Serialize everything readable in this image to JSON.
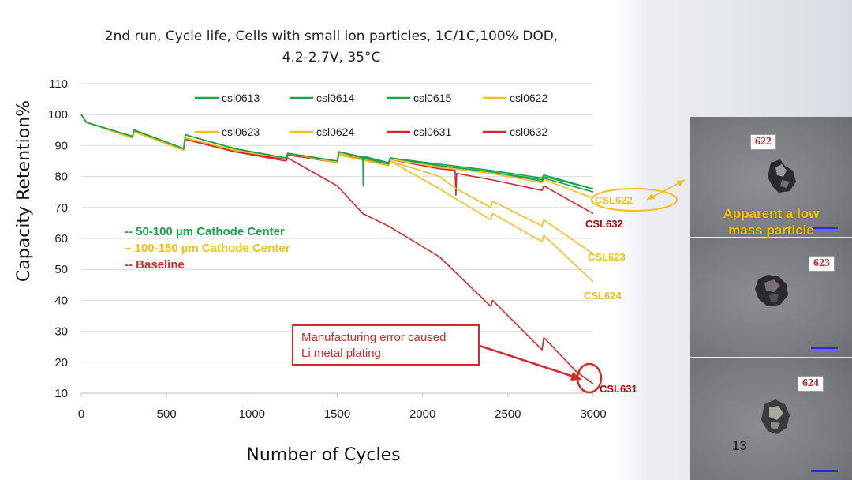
{
  "title_lines": [
    "2nd run, Cycle life, Cells with small ion particles, 1C/1C,100% DOD,",
    "4.2-2.7V, 35°C"
  ],
  "colors": {
    "green": "#1aa34a",
    "yellow": "#f5be1a",
    "red": "#d62828",
    "dark_red": "#c00000"
  },
  "chart_data": {
    "type": "line",
    "title": "2nd run, Cycle life, Cells with small ion particles, 1C/1C,100% DOD, 4.2-2.7V, 35°C",
    "xlabel": "Number of Cycles",
    "ylabel": "Capacity Retention%",
    "xlim": [
      0,
      3000
    ],
    "ylim": [
      10,
      110
    ],
    "x_ticks": [
      "0",
      "500",
      "1000",
      "1500",
      "2000",
      "2500",
      "3000"
    ],
    "y_ticks": [
      "10",
      "20",
      "30",
      "40",
      "50",
      "60",
      "70",
      "80",
      "90",
      "100",
      "110"
    ],
    "legend": [
      "csl0613",
      "csl0614",
      "csl0615",
      "csl0622",
      "csl0623",
      "csl0624",
      "csl0631",
      "csl0632"
    ],
    "series": [
      {
        "name": "csl0613",
        "color": "#1aa34a",
        "x": [
          0,
          30,
          300,
          310,
          600,
          610,
          900,
          1200,
          1210,
          1500,
          1510,
          1800,
          1810,
          2100,
          2400,
          2700,
          2710,
          3000
        ],
        "y": [
          100,
          97.5,
          93,
          95,
          89,
          93.5,
          89,
          86,
          87.5,
          85,
          88,
          84,
          86,
          83.5,
          81.5,
          78.5,
          79.5,
          75
        ]
      },
      {
        "name": "csl0614",
        "color": "#1aa34a",
        "x": [
          0,
          30,
          300,
          310,
          600,
          610,
          900,
          1200,
          1210,
          1500,
          1510,
          1650,
          1652,
          1656,
          1660,
          1800,
          1810,
          2100,
          2400,
          2700,
          2710,
          3000
        ],
        "y": [
          100,
          97.5,
          93,
          95,
          89,
          93.5,
          89,
          86,
          87.5,
          85,
          88,
          86,
          77,
          86,
          86.5,
          84.5,
          86,
          83.5,
          81.5,
          79,
          80,
          76
        ]
      },
      {
        "name": "csl0615",
        "color": "#1aa34a",
        "x": [
          0,
          30,
          300,
          310,
          600,
          610,
          900,
          1200,
          1210,
          1500,
          1510,
          1800,
          1810,
          2100,
          2400,
          2700,
          2710,
          3000
        ],
        "y": [
          100,
          97.5,
          93,
          95,
          89,
          93.5,
          89,
          86,
          87.5,
          85,
          88,
          84.5,
          86,
          84,
          82,
          79.5,
          80.5,
          76
        ]
      },
      {
        "name": "csl0622",
        "color": "#f5be1a",
        "x": [
          0,
          30,
          300,
          310,
          600,
          610,
          900,
          1200,
          1210,
          1500,
          1510,
          1800,
          1810,
          2100,
          2400,
          2700,
          2710,
          3000
        ],
        "y": [
          100,
          97.5,
          92.5,
          94.5,
          88.5,
          92.5,
          88.5,
          86,
          87.5,
          85,
          87.5,
          84,
          85.5,
          83,
          81,
          78,
          79,
          73
        ]
      },
      {
        "name": "csl0623",
        "color": "#f5be1a",
        "x": [
          0,
          30,
          300,
          310,
          600,
          610,
          900,
          1200,
          1210,
          1500,
          1510,
          1800,
          1810,
          2100,
          2200,
          2400,
          2410,
          2700,
          2710,
          3000
        ],
        "y": [
          100,
          97.5,
          92.5,
          94.5,
          88.5,
          92.5,
          88.5,
          86,
          87.5,
          84.5,
          87,
          83.5,
          85,
          80,
          76,
          70,
          72,
          64,
          66,
          55
        ]
      },
      {
        "name": "csl0624",
        "color": "#f5be1a",
        "x": [
          0,
          30,
          300,
          310,
          600,
          610,
          900,
          1200,
          1210,
          1500,
          1510,
          1800,
          1810,
          2100,
          2400,
          2410,
          2700,
          2710,
          3000
        ],
        "y": [
          100,
          97.5,
          92.5,
          94.5,
          88.5,
          92.5,
          88.5,
          86,
          87.5,
          84.5,
          87,
          83.5,
          85,
          76,
          66,
          68,
          59,
          61,
          46
        ]
      },
      {
        "name": "csl0631",
        "color": "#d62828",
        "x": [
          0,
          30,
          300,
          310,
          600,
          610,
          900,
          1200,
          1210,
          1500,
          1650,
          1800,
          2100,
          2400,
          2410,
          2700,
          2710,
          2900,
          3000
        ],
        "y": [
          100,
          97.5,
          92.5,
          95,
          88.5,
          92,
          88,
          85,
          86,
          77,
          68,
          64,
          54,
          38,
          40,
          24,
          28,
          17,
          13
        ]
      },
      {
        "name": "csl0632",
        "color": "#d62828",
        "x": [
          0,
          30,
          300,
          310,
          600,
          610,
          900,
          1200,
          1210,
          1500,
          1510,
          1800,
          1810,
          2100,
          2190,
          2195,
          2200,
          2400,
          2700,
          2710,
          3000
        ],
        "y": [
          100,
          97.5,
          92.5,
          95,
          88.5,
          92,
          88,
          85.5,
          87,
          84.5,
          87,
          84,
          85.5,
          82.5,
          82,
          74,
          81,
          79,
          75.5,
          77,
          68
        ]
      }
    ],
    "annotations": {
      "group_labels": [
        "-- 50-100 µm Cathode Center",
        "– 100-150 µm Cathode Center",
        "--  Baseline"
      ],
      "callouts": [
        "CSL622",
        "CSL632",
        "CSL623",
        "CSL624",
        "CSL631"
      ],
      "error_box": [
        "Manufacturing error caused",
        "Li metal plating"
      ]
    }
  },
  "photos": {
    "labels": [
      "622",
      "623",
      "624"
    ],
    "note": [
      "Apparent a low",
      "mass particle"
    ]
  },
  "slide_number": "13"
}
